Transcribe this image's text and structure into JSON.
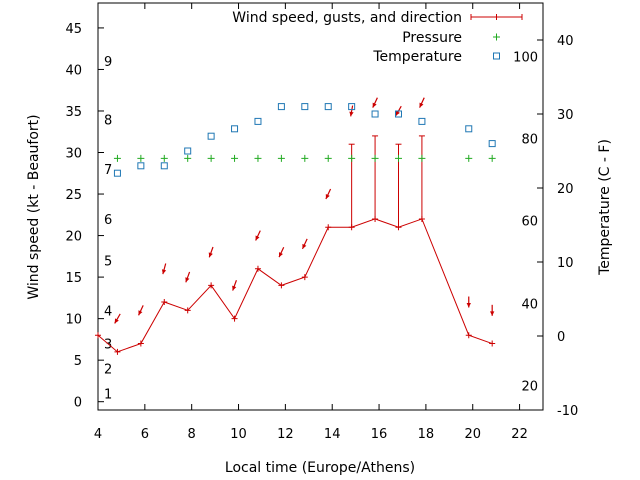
{
  "chart_data": {
    "type": "line",
    "xlabel": "Local time (Europe/Athens)",
    "ylabel_left": "Wind speed (kt - Beaufort)",
    "ylabel_right": "Temperature (C - F)",
    "xlim": [
      4,
      23
    ],
    "ylim_left": [
      -1,
      48
    ],
    "ylim_right": [
      -10,
      45
    ],
    "x_ticks": [
      4,
      6,
      8,
      10,
      12,
      14,
      16,
      18,
      20,
      22
    ],
    "y_ticks_left": [
      0,
      5,
      10,
      15,
      20,
      25,
      30,
      35,
      40,
      45
    ],
    "y_ticks_right": [
      -10,
      0,
      10,
      20,
      30,
      40
    ],
    "beaufort_labels": [
      {
        "label": "1",
        "kt": 1
      },
      {
        "label": "2",
        "kt": 4
      },
      {
        "label": "3",
        "kt": 7
      },
      {
        "label": "4",
        "kt": 11
      },
      {
        "label": "5",
        "kt": 17
      },
      {
        "label": "6",
        "kt": 22
      },
      {
        "label": "7",
        "kt": 28
      },
      {
        "label": "8",
        "kt": 34
      },
      {
        "label": "9",
        "kt": 41
      }
    ],
    "fahrenheit_labels": [
      {
        "label": "20",
        "celsius": -6.7
      },
      {
        "label": "40",
        "celsius": 4.4
      },
      {
        "label": "60",
        "celsius": 15.6
      },
      {
        "label": "80",
        "celsius": 26.7
      },
      {
        "label": "100",
        "celsius": 37.8
      }
    ],
    "legend": {
      "position": "top-right",
      "entries": [
        {
          "label": "Wind speed, gusts, and direction",
          "color": "#cc0000",
          "marker": "line-plus"
        },
        {
          "label": "Pressure",
          "color": "#22aa22",
          "marker": "plus"
        },
        {
          "label": "Temperature",
          "color": "#1f77b4",
          "marker": "square"
        }
      ]
    },
    "series": [
      {
        "name": "Wind speed, gusts, and direction",
        "color": "#cc0000",
        "x": [
          4,
          4.83,
          5.83,
          6.83,
          7.83,
          8.83,
          9.83,
          10.83,
          11.83,
          12.83,
          13.83,
          14.83,
          15.83,
          16.83,
          17.83,
          19.83,
          20.83
        ],
        "speed": [
          8,
          6,
          7,
          12,
          11,
          14,
          10,
          16,
          14,
          15,
          21,
          21,
          22,
          21,
          22,
          8,
          7
        ],
        "gust": [
          null,
          null,
          null,
          null,
          null,
          null,
          null,
          null,
          null,
          null,
          null,
          31,
          32,
          31,
          32,
          null,
          null
        ],
        "arrows": [
          {
            "x": 4.83,
            "y": 10,
            "angle": 210
          },
          {
            "x": 5.83,
            "y": 11,
            "angle": 205
          },
          {
            "x": 6.83,
            "y": 16,
            "angle": 195
          },
          {
            "x": 7.83,
            "y": 15,
            "angle": 200
          },
          {
            "x": 8.83,
            "y": 18,
            "angle": 200
          },
          {
            "x": 9.83,
            "y": 14,
            "angle": 200
          },
          {
            "x": 10.83,
            "y": 20,
            "angle": 205
          },
          {
            "x": 11.83,
            "y": 18,
            "angle": 205
          },
          {
            "x": 12.83,
            "y": 19,
            "angle": 205
          },
          {
            "x": 13.83,
            "y": 25,
            "angle": 205
          },
          {
            "x": 14.83,
            "y": 35,
            "angle": 190
          },
          {
            "x": 15.83,
            "y": 36,
            "angle": 205
          },
          {
            "x": 16.83,
            "y": 35,
            "angle": 210
          },
          {
            "x": 17.83,
            "y": 36,
            "angle": 205
          },
          {
            "x": 19.83,
            "y": 12,
            "angle": 180
          },
          {
            "x": 20.83,
            "y": 11,
            "angle": 180
          }
        ]
      },
      {
        "name": "Pressure",
        "color": "#22aa22",
        "x": [
          4.83,
          5.83,
          6.83,
          7.83,
          8.83,
          9.83,
          10.83,
          11.83,
          12.83,
          13.83,
          14.83,
          15.83,
          16.83,
          17.83,
          19.83,
          20.83
        ],
        "y_wind_axis": [
          29.3,
          29.3,
          29.3,
          29.3,
          29.3,
          29.3,
          29.3,
          29.3,
          29.3,
          29.3,
          29.3,
          29.3,
          29.3,
          29.3,
          29.3,
          29.3
        ]
      },
      {
        "name": "Temperature",
        "color": "#1f77b4",
        "x": [
          4.83,
          5.83,
          6.83,
          7.83,
          8.83,
          9.83,
          10.83,
          11.83,
          12.83,
          13.83,
          14.83,
          15.83,
          16.83,
          17.83,
          19.83,
          20.83
        ],
        "celsius": [
          22,
          23,
          23,
          25,
          27,
          28,
          29,
          31,
          31,
          31,
          31,
          30,
          30,
          29,
          28,
          26
        ]
      }
    ]
  }
}
